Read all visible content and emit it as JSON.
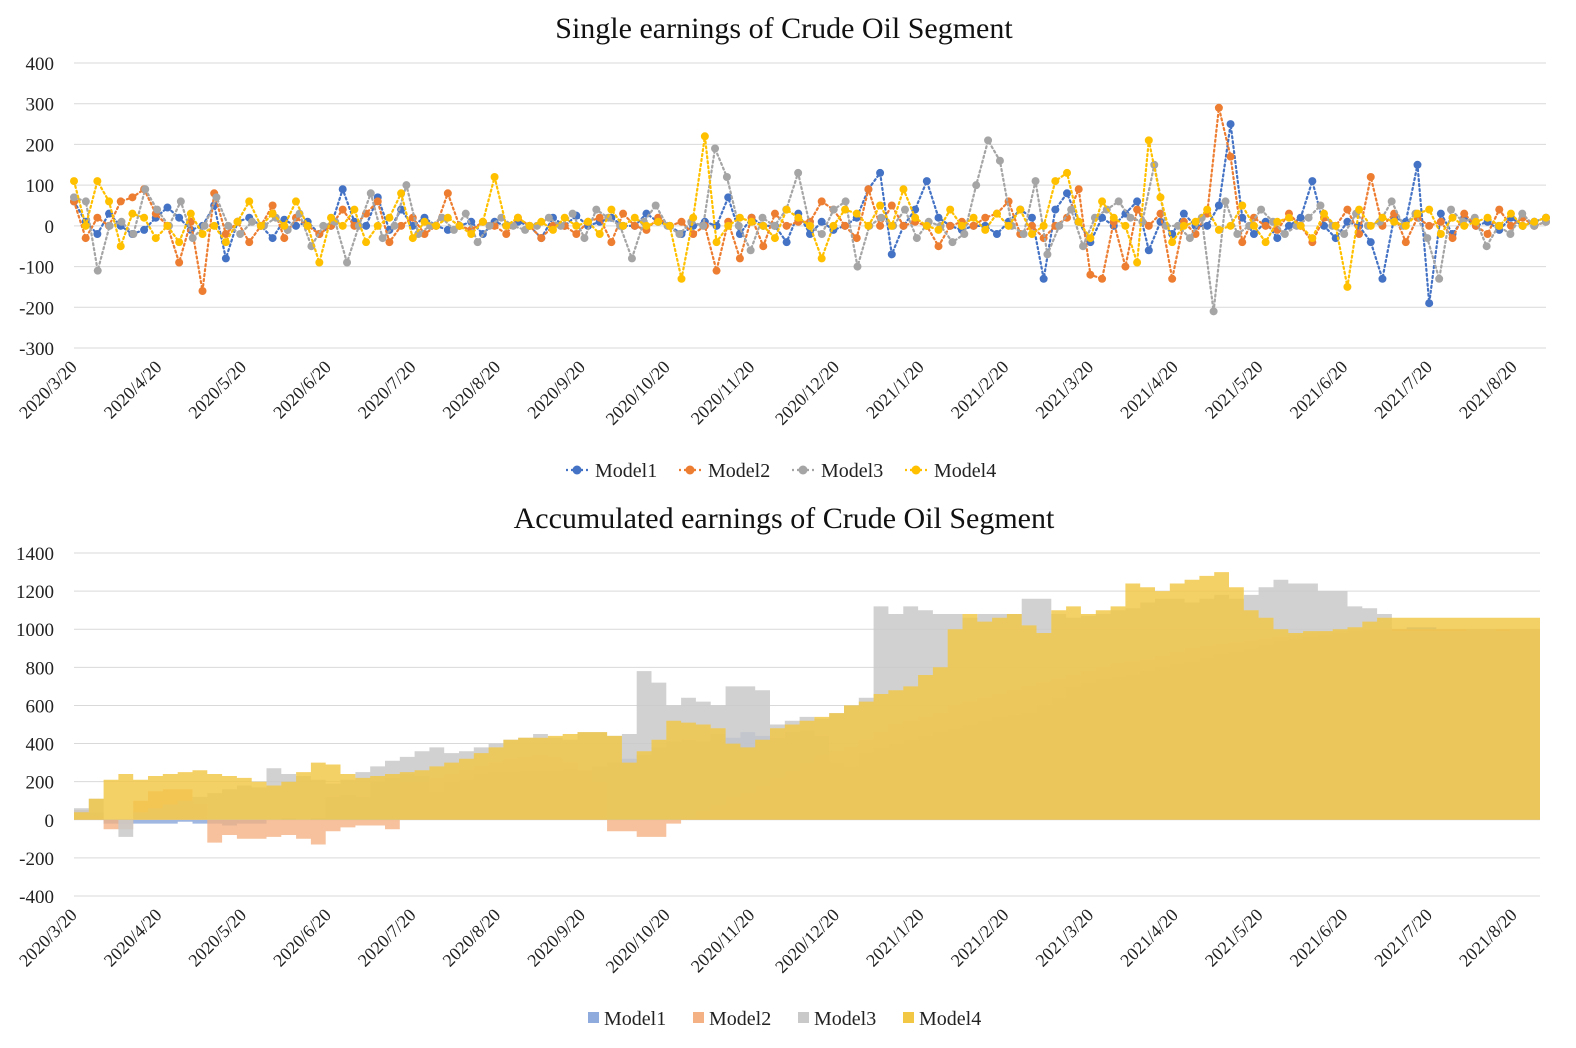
{
  "chart_data": [
    {
      "type": "line",
      "style": "dotted-markers",
      "title": "Single earnings of Crude Oil Segment",
      "xlabel": "",
      "ylabel": "",
      "ylim": [
        -300,
        400
      ],
      "yticks": [
        "400",
        "300",
        "200",
        "100",
        "0",
        "-100",
        "-200",
        "-300"
      ],
      "ytick_values": [
        400,
        300,
        200,
        100,
        0,
        -100,
        -200,
        -300
      ],
      "x_tick_labels": [
        "2020/3/20",
        "2020/4/20",
        "2020/5/20",
        "2020/6/20",
        "2020/7/20",
        "2020/8/20",
        "2020/9/20",
        "2020/10/20",
        "2020/11/20",
        "2020/12/20",
        "2021/1/20",
        "2021/2/20",
        "2021/3/20",
        "2021/4/20",
        "2021/5/20",
        "2021/6/20",
        "2021/7/20",
        "2021/8/20"
      ],
      "legend_position": "bottom-center",
      "series": [
        {
          "name": "Model1",
          "color": "#4472c4",
          "values": [
            60,
            10,
            -20,
            30,
            0,
            -20,
            -10,
            20,
            45,
            20,
            -10,
            0,
            50,
            -80,
            10,
            20,
            0,
            -30,
            15,
            0,
            10,
            -20,
            0,
            90,
            10,
            0,
            70,
            -10,
            40,
            0,
            20,
            0,
            -10,
            0,
            10,
            -20,
            10,
            0,
            10,
            0,
            -30,
            20,
            0,
            25,
            0,
            10,
            20,
            0,
            0,
            30,
            10,
            0,
            -20,
            0,
            10,
            0,
            70,
            -20,
            20,
            0,
            0,
            -40,
            30,
            -20,
            10,
            -10,
            0,
            20,
            90,
            130,
            -70,
            0,
            40,
            110,
            20,
            0,
            -10,
            0,
            0,
            -20,
            10,
            40,
            20,
            -130,
            40,
            80,
            10,
            -40,
            20,
            0,
            30,
            60,
            -60,
            10,
            -20,
            30,
            0,
            0,
            50,
            250,
            20,
            -20,
            10,
            -30,
            0,
            20,
            110,
            0,
            -30,
            10,
            0,
            -40,
            -130,
            20,
            10,
            150,
            -190,
            30,
            -20,
            20,
            0,
            10,
            -10,
            20,
            0,
            10,
            20
          ]
        },
        {
          "name": "Model2",
          "color": "#ed7d31",
          "values": [
            60,
            -30,
            20,
            0,
            60,
            70,
            90,
            30,
            0,
            -90,
            10,
            -160,
            80,
            -20,
            10,
            -40,
            0,
            50,
            -30,
            20,
            0,
            -20,
            0,
            40,
            0,
            30,
            60,
            -40,
            0,
            20,
            -20,
            0,
            80,
            0,
            -10,
            10,
            0,
            -20,
            20,
            0,
            -30,
            0,
            0,
            -20,
            10,
            20,
            -40,
            30,
            0,
            -10,
            20,
            0,
            10,
            -20,
            0,
            -110,
            10,
            -80,
            20,
            -50,
            30,
            0,
            10,
            10,
            60,
            40,
            0,
            -30,
            90,
            0,
            50,
            0,
            10,
            0,
            -50,
            0,
            10,
            0,
            20,
            30,
            60,
            -20,
            0,
            -30,
            0,
            20,
            90,
            -120,
            -130,
            10,
            -100,
            40,
            0,
            30,
            -130,
            10,
            -20,
            30,
            290,
            170,
            -40,
            20,
            0,
            -10,
            30,
            0,
            -40,
            20,
            0,
            40,
            -20,
            120,
            0,
            30,
            -40,
            20,
            0,
            10,
            -30,
            30,
            0,
            -20,
            40,
            0,
            20,
            0,
            10
          ]
        },
        {
          "name": "Model3",
          "color": "#a5a5a5",
          "values": [
            70,
            60,
            -110,
            0,
            10,
            -20,
            90,
            40,
            0,
            60,
            -30,
            0,
            70,
            0,
            -20,
            10,
            0,
            20,
            -10,
            30,
            -50,
            0,
            10,
            -90,
            0,
            80,
            -30,
            0,
            100,
            -20,
            0,
            20,
            -10,
            30,
            -40,
            0,
            20,
            0,
            -10,
            0,
            20,
            0,
            30,
            -30,
            40,
            20,
            0,
            -80,
            10,
            50,
            0,
            -20,
            10,
            0,
            190,
            120,
            0,
            -60,
            20,
            0,
            40,
            130,
            0,
            -20,
            40,
            60,
            -100,
            0,
            20,
            0,
            40,
            -30,
            10,
            0,
            -40,
            -20,
            100,
            210,
            160,
            0,
            -20,
            110,
            -70,
            0,
            40,
            -50,
            20,
            40,
            60,
            20,
            10,
            150,
            0,
            0,
            -30,
            20,
            -210,
            60,
            -20,
            0,
            40,
            10,
            -20,
            0,
            20,
            50,
            0,
            -20,
            30,
            0,
            10,
            60,
            0,
            30,
            -30,
            -130,
            40,
            10,
            20,
            -50,
            0,
            -20,
            30,
            0,
            10
          ]
        },
        {
          "name": "Model4",
          "color": "#ffc000",
          "values": [
            110,
            0,
            110,
            60,
            -50,
            30,
            20,
            -30,
            0,
            -40,
            30,
            -20,
            0,
            -40,
            10,
            60,
            0,
            30,
            0,
            60,
            0,
            -90,
            20,
            0,
            40,
            -40,
            0,
            20,
            80,
            -30,
            10,
            0,
            20,
            0,
            -20,
            10,
            120,
            0,
            20,
            0,
            10,
            -10,
            20,
            0,
            10,
            -20,
            40,
            0,
            20,
            0,
            10,
            0,
            -130,
            20,
            220,
            -40,
            0,
            20,
            10,
            0,
            -30,
            40,
            20,
            0,
            -80,
            0,
            40,
            30,
            0,
            50,
            0,
            90,
            20,
            0,
            -10,
            40,
            0,
            20,
            -10,
            30,
            0,
            40,
            -20,
            0,
            110,
            130,
            10,
            -30,
            60,
            20,
            0,
            -90,
            210,
            70,
            -40,
            0,
            10,
            40,
            -10,
            0,
            50,
            0,
            -40,
            10,
            20,
            0,
            -30,
            30,
            0,
            -150,
            40,
            0,
            20,
            10,
            0,
            30,
            40,
            -20,
            20,
            0,
            10,
            20,
            0,
            30,
            0,
            10,
            20
          ]
        }
      ]
    },
    {
      "type": "area",
      "style": "stepped-overlapping",
      "title": "Accumulated earnings of Crude Oil Segment",
      "xlabel": "",
      "ylabel": "",
      "ylim": [
        -400,
        1400
      ],
      "yticks": [
        "1400",
        "1200",
        "1000",
        "800",
        "600",
        "400",
        "200",
        "0",
        "-200",
        "-400"
      ],
      "ytick_values": [
        1400,
        1200,
        1000,
        800,
        600,
        400,
        200,
        0,
        -200,
        -400
      ],
      "x_tick_labels": [
        "2020/3/20",
        "2020/4/20",
        "2020/5/20",
        "2020/6/20",
        "2020/7/20",
        "2020/8/20",
        "2020/9/20",
        "2020/10/20",
        "2020/11/20",
        "2020/12/20",
        "2021/1/20",
        "2021/2/20",
        "2021/3/20",
        "2021/4/20",
        "2021/5/20",
        "2021/6/20",
        "2021/7/20",
        "2021/8/20"
      ],
      "legend_position": "bottom-center",
      "series": [
        {
          "name": "Model1",
          "color": "#8faadc",
          "values": [
            50,
            40,
            -20,
            -20,
            -20,
            -20,
            -20,
            -10,
            -20,
            -20,
            -30,
            -20,
            -20,
            0,
            10,
            0,
            10,
            120,
            130,
            120,
            200,
            220,
            240,
            230,
            150,
            200,
            210,
            240,
            250,
            250,
            260,
            260,
            260,
            270,
            260,
            280,
            300,
            320,
            340,
            380,
            410,
            420,
            410,
            450,
            430,
            460,
            440,
            430,
            460,
            470,
            440,
            300,
            280,
            350,
            380,
            400,
            420,
            440,
            460,
            480,
            500,
            520,
            540,
            550,
            560,
            600,
            640,
            700,
            720,
            740,
            750,
            760,
            780,
            800,
            820,
            830,
            850,
            870,
            880,
            900,
            920,
            940,
            950,
            960,
            970,
            980,
            990,
            1000,
            1000,
            1000,
            1010,
            1010,
            1000,
            1000,
            1000,
            1000,
            1000,
            1000,
            1000,
            1000
          ]
        },
        {
          "name": "Model2",
          "color": "#f4b183",
          "values": [
            50,
            20,
            -50,
            -50,
            100,
            150,
            160,
            160,
            80,
            -120,
            -80,
            -100,
            -100,
            -90,
            -80,
            -100,
            -130,
            -60,
            -40,
            -30,
            -30,
            -50,
            200,
            200,
            220,
            240,
            260,
            280,
            300,
            320,
            330,
            340,
            330,
            300,
            260,
            200,
            -60,
            -60,
            -90,
            -90,
            -20,
            10,
            50,
            80,
            120,
            140,
            180,
            220,
            260,
            300,
            340,
            360,
            380,
            420,
            460,
            500,
            520,
            540,
            560,
            600,
            620,
            640,
            660,
            680,
            700,
            720,
            740,
            760,
            780,
            800,
            820,
            830,
            840,
            860,
            880,
            900,
            910,
            920,
            930,
            940,
            950,
            960,
            970,
            980,
            990,
            990,
            1000,
            1000,
            1000,
            1000,
            1000,
            1000,
            1000,
            1000,
            1000,
            1000,
            1000,
            1000,
            1000,
            1000
          ]
        },
        {
          "name": "Model3",
          "color": "#c9c9c9",
          "values": [
            60,
            110,
            0,
            -90,
            40,
            60,
            80,
            100,
            120,
            140,
            160,
            180,
            170,
            270,
            240,
            230,
            210,
            190,
            210,
            250,
            280,
            310,
            330,
            360,
            380,
            350,
            360,
            380,
            400,
            420,
            430,
            450,
            430,
            420,
            460,
            460,
            440,
            450,
            780,
            720,
            600,
            640,
            620,
            600,
            700,
            700,
            680,
            500,
            520,
            540,
            530,
            560,
            600,
            640,
            1120,
            1080,
            1120,
            1100,
            1080,
            1080,
            1060,
            1080,
            1080,
            1080,
            1160,
            1160,
            1080,
            1060,
            1070,
            1080,
            1100,
            1110,
            1140,
            1160,
            1160,
            1140,
            1160,
            1180,
            1160,
            1180,
            1220,
            1260,
            1240,
            1240,
            1200,
            1200,
            1120,
            1110,
            1080,
            990,
            990,
            990,
            990,
            990,
            1000,
            1000,
            990,
            1000,
            1000,
            1010
          ]
        },
        {
          "name": "Model4",
          "color": "#f2c744",
          "values": [
            40,
            110,
            210,
            240,
            210,
            230,
            240,
            250,
            260,
            240,
            230,
            220,
            200,
            180,
            200,
            250,
            300,
            290,
            240,
            220,
            230,
            240,
            250,
            260,
            280,
            300,
            320,
            350,
            380,
            420,
            430,
            430,
            440,
            450,
            460,
            460,
            440,
            300,
            360,
            420,
            520,
            510,
            500,
            480,
            400,
            380,
            420,
            480,
            500,
            520,
            540,
            560,
            600,
            620,
            660,
            680,
            700,
            760,
            800,
            1000,
            1080,
            1040,
            1060,
            1080,
            1020,
            980,
            1100,
            1120,
            1080,
            1100,
            1120,
            1240,
            1220,
            1200,
            1240,
            1260,
            1280,
            1300,
            1220,
            1100,
            1060,
            1000,
            980,
            990,
            990,
            1000,
            1010,
            1040,
            1060,
            1060,
            1060,
            1060,
            1060,
            1060,
            1060,
            1060,
            1060,
            1060,
            1060,
            1060
          ]
        }
      ]
    }
  ]
}
